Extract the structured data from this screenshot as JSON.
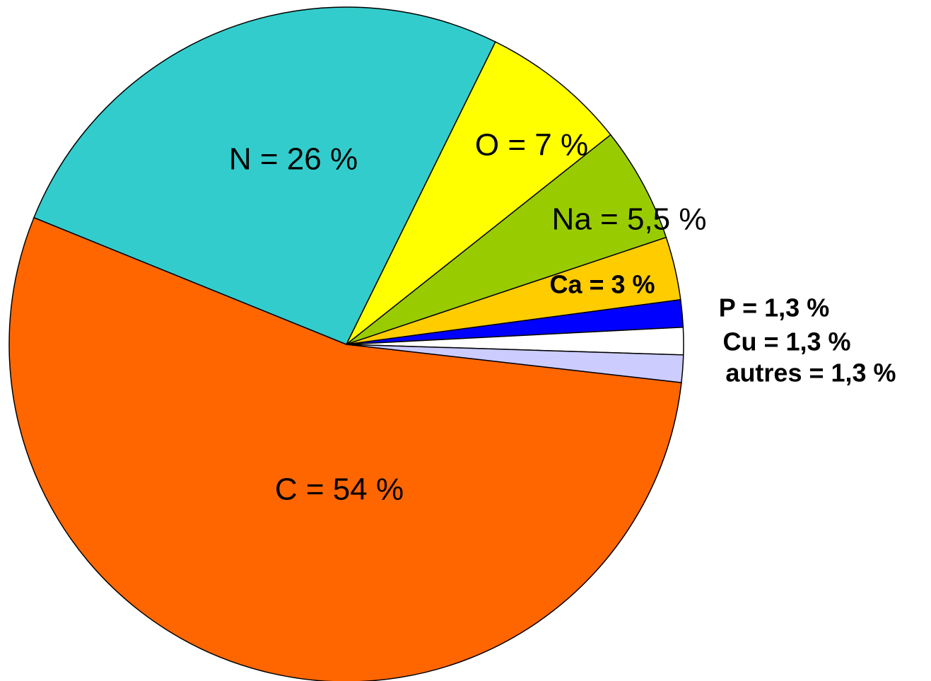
{
  "chart_data": {
    "type": "pie",
    "values": [
      54,
      26,
      7,
      5.5,
      3,
      1.3,
      1.3,
      1.3
    ],
    "value_labels": [
      "C = 54 %",
      "N = 26 %",
      "O = 7 %",
      "Na = 5,5 %",
      "Ca = 3 %",
      "P = 1,3 %",
      "Cu = 1,3 %",
      "autres = 1,3 %"
    ],
    "colors": [
      "#ff6600",
      "#33cccc",
      "#ffff00",
      "#99cc00",
      "#ffcc00",
      "#0000ff",
      "#ffffff",
      "#ccccff"
    ]
  }
}
